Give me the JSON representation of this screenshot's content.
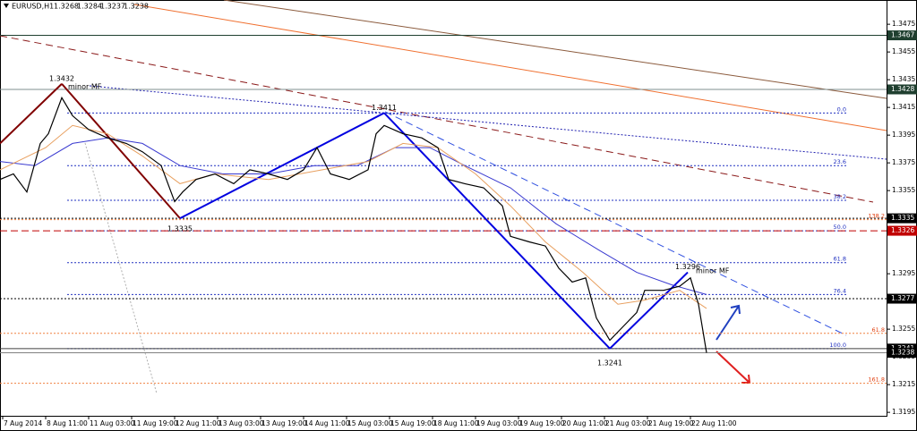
{
  "header": {
    "symbol": "EURUSD,H1",
    "values": [
      "1.3268",
      "1.3284",
      "1.3237",
      "1.3238"
    ]
  },
  "chart_data": {
    "type": "line",
    "x": [
      0,
      5,
      10,
      15,
      18,
      23,
      27,
      33,
      40,
      47,
      53,
      60,
      65,
      68,
      73,
      80,
      87,
      93,
      100,
      107,
      113,
      118,
      123,
      130,
      137,
      140,
      143,
      150,
      157,
      163,
      167,
      173,
      180,
      187,
      190,
      197,
      203,
      208,
      213,
      218,
      222,
      227,
      232,
      237,
      240,
      247,
      253,
      257,
      260,
      263
    ],
    "series": [
      {
        "color": "#000000",
        "values": [
          1.3363,
          1.3367,
          1.3354,
          1.3389,
          1.3396,
          1.3422,
          1.3409,
          1.3399,
          1.3393,
          1.3389,
          1.3383,
          1.3373,
          1.3347,
          1.3354,
          1.3363,
          1.3367,
          1.336,
          1.337,
          1.3367,
          1.3363,
          1.337,
          1.3386,
          1.3367,
          1.3363,
          1.337,
          1.3396,
          1.3402,
          1.3396,
          1.3393,
          1.3386,
          1.3363,
          1.336,
          1.3357,
          1.3344,
          1.3322,
          1.3318,
          1.3315,
          1.3299,
          1.3289,
          1.3292,
          1.3263,
          1.3247,
          1.3257,
          1.3267,
          1.3283,
          1.3283,
          1.3286,
          1.3292,
          1.3273,
          1.3238
        ]
      },
      {
        "color": "#e8a060",
        "x": [
          0,
          17,
          27,
          40,
          53,
          67,
          80,
          100,
          120,
          137,
          150,
          163,
          177,
          190,
          203,
          217,
          230,
          240,
          253,
          263
        ],
        "values": [
          1.337,
          1.3386,
          1.3402,
          1.3396,
          1.338,
          1.336,
          1.3367,
          1.3363,
          1.337,
          1.3376,
          1.3389,
          1.3386,
          1.3367,
          1.3344,
          1.3318,
          1.3296,
          1.3273,
          1.3276,
          1.3283,
          1.327
        ]
      },
      {
        "color": "#3a3ad0",
        "x": [
          0,
          13,
          27,
          40,
          53,
          67,
          83,
          100,
          117,
          133,
          147,
          160,
          173,
          190,
          207,
          223,
          237,
          250,
          263
        ],
        "values": [
          1.3376,
          1.3373,
          1.3389,
          1.3393,
          1.3389,
          1.3373,
          1.3367,
          1.3367,
          1.3373,
          1.3373,
          1.3386,
          1.3386,
          1.3373,
          1.3357,
          1.3331,
          1.3312,
          1.3296,
          1.3287,
          1.328
        ]
      }
    ],
    "xlim": [
      0,
      330
    ],
    "xticks": [
      {
        "value": 1,
        "label": "7 Aug 2014"
      },
      {
        "value": 17,
        "label": "8 Aug 11:00"
      },
      {
        "value": 33,
        "label": "11 Aug 03:00"
      },
      {
        "value": 49,
        "label": "11 Aug 19:00"
      },
      {
        "value": 65,
        "label": "12 Aug 11:00"
      },
      {
        "value": 81,
        "label": "13 Aug 03:00"
      },
      {
        "value": 97,
        "label": "13 Aug 19:00"
      },
      {
        "value": 113,
        "label": "14 Aug 11:00"
      },
      {
        "value": 129,
        "label": "15 Aug 03:00"
      },
      {
        "value": 145,
        "label": "15 Aug 19:00"
      },
      {
        "value": 161,
        "label": "18 Aug 11:00"
      },
      {
        "value": 177,
        "label": "19 Aug 03:00"
      },
      {
        "value": 193,
        "label": "19 Aug 19:00"
      },
      {
        "value": 209,
        "label": "20 Aug 11:00"
      },
      {
        "value": 225,
        "label": "21 Aug 03:00"
      },
      {
        "value": 241,
        "label": "21 Aug 19:00"
      },
      {
        "value": 257,
        "label": "22 Aug 11:00"
      }
    ],
    "ylim": [
      1.31925,
      1.34925
    ],
    "yticks": [
      1.3475,
      1.3455,
      1.3435,
      1.3415,
      1.3395,
      1.3375,
      1.3355,
      1.3295,
      1.3255,
      1.3235,
      1.3215,
      1.3195
    ],
    "price_labels": [
      {
        "value": 1.3467,
        "color": "#1f3f2f",
        "line": "#1f3f2f"
      },
      {
        "value": 1.3428,
        "color": "#1f3f2f",
        "line": "#7f8f8f"
      },
      {
        "value": 1.3335,
        "color": "#000000",
        "line": "#000000"
      },
      {
        "value": 1.3326,
        "color": "#c00000",
        "line": "#c00000"
      },
      {
        "value": 1.3277,
        "color": "#000000",
        "line": "#000000"
      },
      {
        "value": 1.3241,
        "color": "#000000",
        "line": "#404040"
      },
      {
        "value": 1.3238,
        "color": "#000000",
        "line": "#808080"
      }
    ],
    "zigzag": [
      {
        "x": 0,
        "price": 1.3389,
        "color": "#800000"
      },
      {
        "x": 23,
        "price": 1.3432,
        "color": "#800000"
      },
      {
        "x": 67,
        "price": 1.3335,
        "color": "#800000"
      },
      {
        "x": 143,
        "price": 1.3411,
        "color": "#0000e0"
      },
      {
        "x": 227,
        "price": 1.3241,
        "color": "#0000e0"
      },
      {
        "x": 256,
        "price": 1.3296,
        "color": "#0000e0"
      }
    ],
    "fib_blue": [
      {
        "label": "0.0",
        "price": 1.3411
      },
      {
        "label": "23.6",
        "price": 1.3373
      },
      {
        "label": "38.2",
        "price": 1.3348
      },
      {
        "label": "50.0",
        "price": 1.3326
      },
      {
        "label": "61.8",
        "price": 1.3303
      },
      {
        "label": "76.4",
        "price": 1.328
      },
      {
        "label": "100.0",
        "price": 1.3241
      }
    ],
    "fib_orange": [
      {
        "label": "138.2",
        "price": 1.3334
      },
      {
        "label": "61.8",
        "price": 1.3252
      },
      {
        "label": "161.8",
        "price": 1.3216
      }
    ],
    "annotations": [
      "minor MF",
      "minor MF"
    ]
  }
}
